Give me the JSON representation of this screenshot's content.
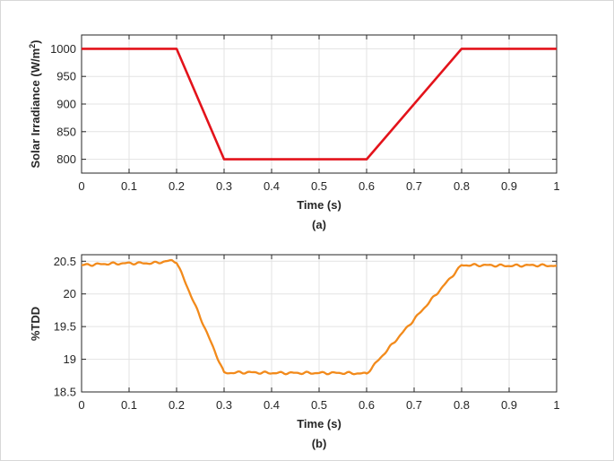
{
  "chart_data": [
    {
      "type": "line",
      "caption": "(a)",
      "xlabel": "Time (s)",
      "ylabel": "Solar Irradiance (W/m²)",
      "ylabel_main": "Solar Irradiance (W/m",
      "ylabel_sup": "2",
      "ylabel_tail": ")",
      "xlim": [
        0,
        1
      ],
      "ylim": [
        775,
        1025
      ],
      "xticks": [
        0,
        0.1,
        0.2,
        0.3,
        0.4,
        0.5,
        0.6,
        0.7,
        0.8,
        0.9,
        1
      ],
      "xtick_labels": [
        "0",
        "0.1",
        "0.2",
        "0.3",
        "0.4",
        "0.5",
        "0.6",
        "0.7",
        "0.8",
        "0.9",
        "1"
      ],
      "yticks": [
        800,
        850,
        900,
        950,
        1000
      ],
      "ytick_labels": [
        "800",
        "850",
        "900",
        "950",
        "1000"
      ],
      "grid": true,
      "color": "#e3131b",
      "series": [
        {
          "x": [
            0,
            0.2,
            0.3,
            0.6,
            0.8,
            1
          ],
          "y": [
            1000,
            1000,
            800,
            800,
            1000,
            1000
          ]
        }
      ]
    },
    {
      "type": "line",
      "caption": "(b)",
      "xlabel": "Time (s)",
      "ylabel": "%TDD",
      "xlim": [
        0,
        1
      ],
      "ylim": [
        18.5,
        20.6
      ],
      "xticks": [
        0,
        0.1,
        0.2,
        0.3,
        0.4,
        0.5,
        0.6,
        0.7,
        0.8,
        0.9,
        1
      ],
      "xtick_labels": [
        "0",
        "0.1",
        "0.2",
        "0.3",
        "0.4",
        "0.5",
        "0.6",
        "0.7",
        "0.8",
        "0.9",
        "1"
      ],
      "yticks": [
        18.5,
        19,
        19.5,
        20,
        20.5
      ],
      "ytick_labels": [
        "18.5",
        "19",
        "19.5",
        "20",
        "20.5"
      ],
      "grid": true,
      "color": "#f28a1b",
      "series": [
        {
          "x": [
            0,
            0.05,
            0.1,
            0.15,
            0.19,
            0.2,
            0.3,
            0.35,
            0.4,
            0.45,
            0.5,
            0.55,
            0.6,
            0.8,
            0.85,
            0.9,
            0.95,
            1
          ],
          "y": [
            20.44,
            20.46,
            20.47,
            20.47,
            20.51,
            20.49,
            18.79,
            18.8,
            18.79,
            18.79,
            18.79,
            18.79,
            18.78,
            20.44,
            20.44,
            20.43,
            20.44,
            20.43
          ]
        }
      ]
    }
  ]
}
